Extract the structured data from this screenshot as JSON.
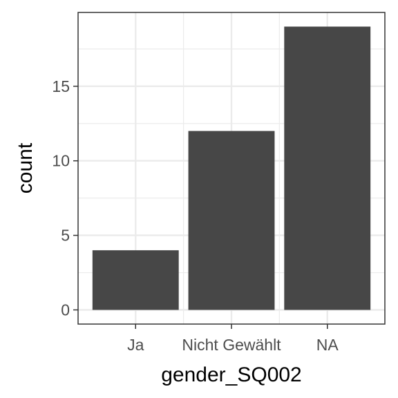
{
  "chart_data": {
    "type": "bar",
    "categories": [
      "Ja",
      "Nicht Gewählt",
      "NA"
    ],
    "values": [
      4,
      12,
      19
    ],
    "title": "",
    "xlabel": "gender_SQ002",
    "ylabel": "count",
    "ylim": [
      -0.95,
      19.95
    ],
    "yticks": [
      0,
      5,
      10,
      15
    ],
    "yticks_minor": [
      2.5,
      7.5,
      12.5,
      17.5
    ],
    "grid": true,
    "legend": "none",
    "colors": {
      "bar": "#474747",
      "grid": "#ebebeb",
      "panel_border": "#333333",
      "tick": "#333333"
    }
  }
}
